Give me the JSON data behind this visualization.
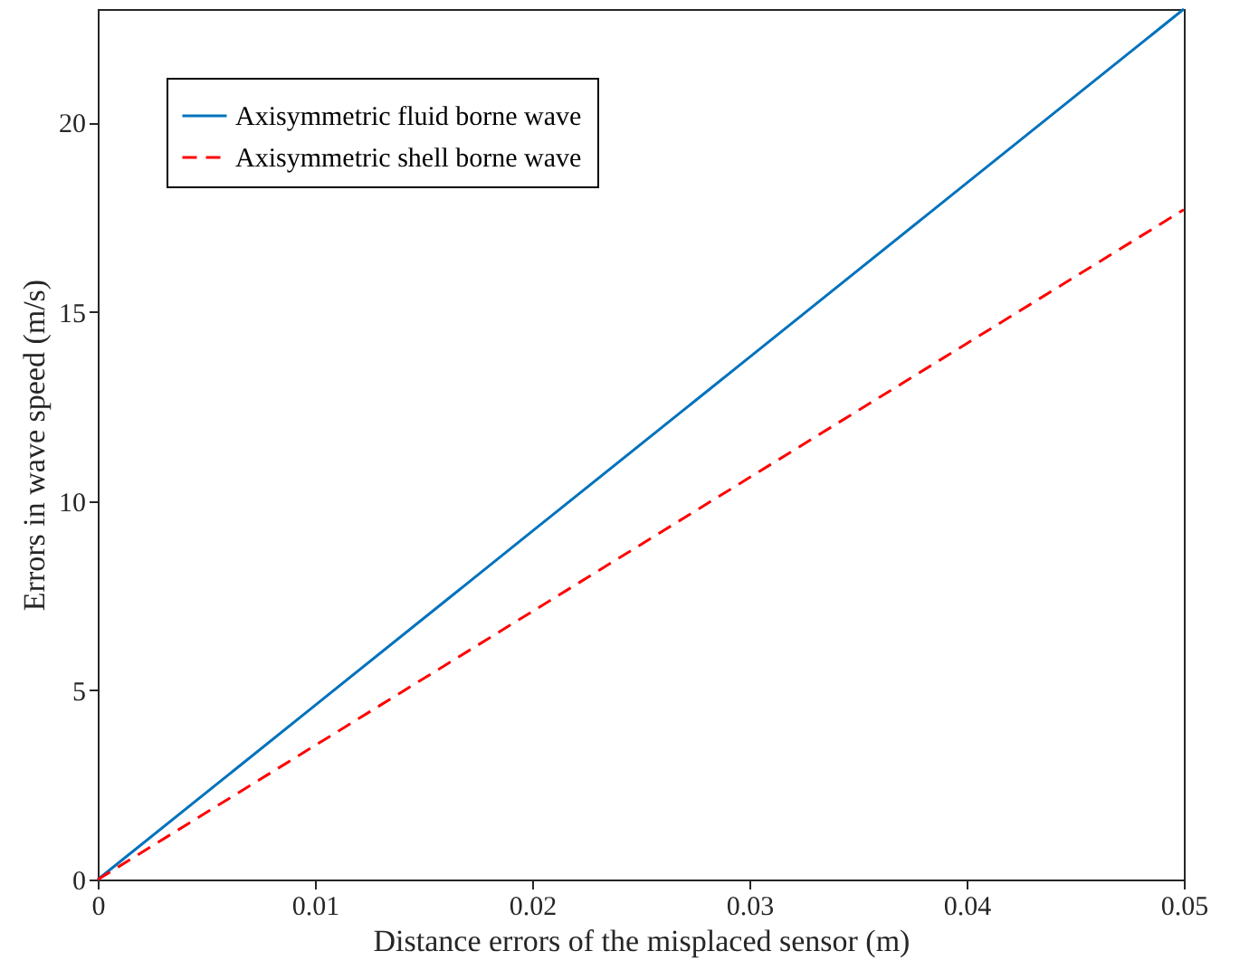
{
  "chart_data": {
    "type": "line",
    "xlabel": "Distance errors of the misplaced sensor (m)",
    "ylabel": "Errors in wave speed (m/s)",
    "x": [
      0,
      0.01,
      0.02,
      0.03,
      0.04,
      0.05
    ],
    "series": [
      {
        "name": "Axisymmetric fluid borne wave",
        "color": "#0072bd",
        "values": [
          0,
          4.6,
          9.2,
          13.8,
          18.4,
          23
        ],
        "line_style": "solid"
      },
      {
        "name": "Axisymmetric shell borne wave",
        "color": "#ff0000",
        "values": [
          0,
          3.54,
          7.08,
          10.62,
          14.16,
          17.7
        ],
        "line_style": "dashed"
      }
    ],
    "xlim": [
      0,
      0.05
    ],
    "xticks": [
      0,
      0.01,
      0.02,
      0.03,
      0.04,
      0.05
    ],
    "ylim": [
      0,
      23
    ],
    "yticks": [
      0,
      5,
      10,
      15,
      20
    ],
    "grid": false,
    "legend": "top left",
    "marker": "none"
  }
}
